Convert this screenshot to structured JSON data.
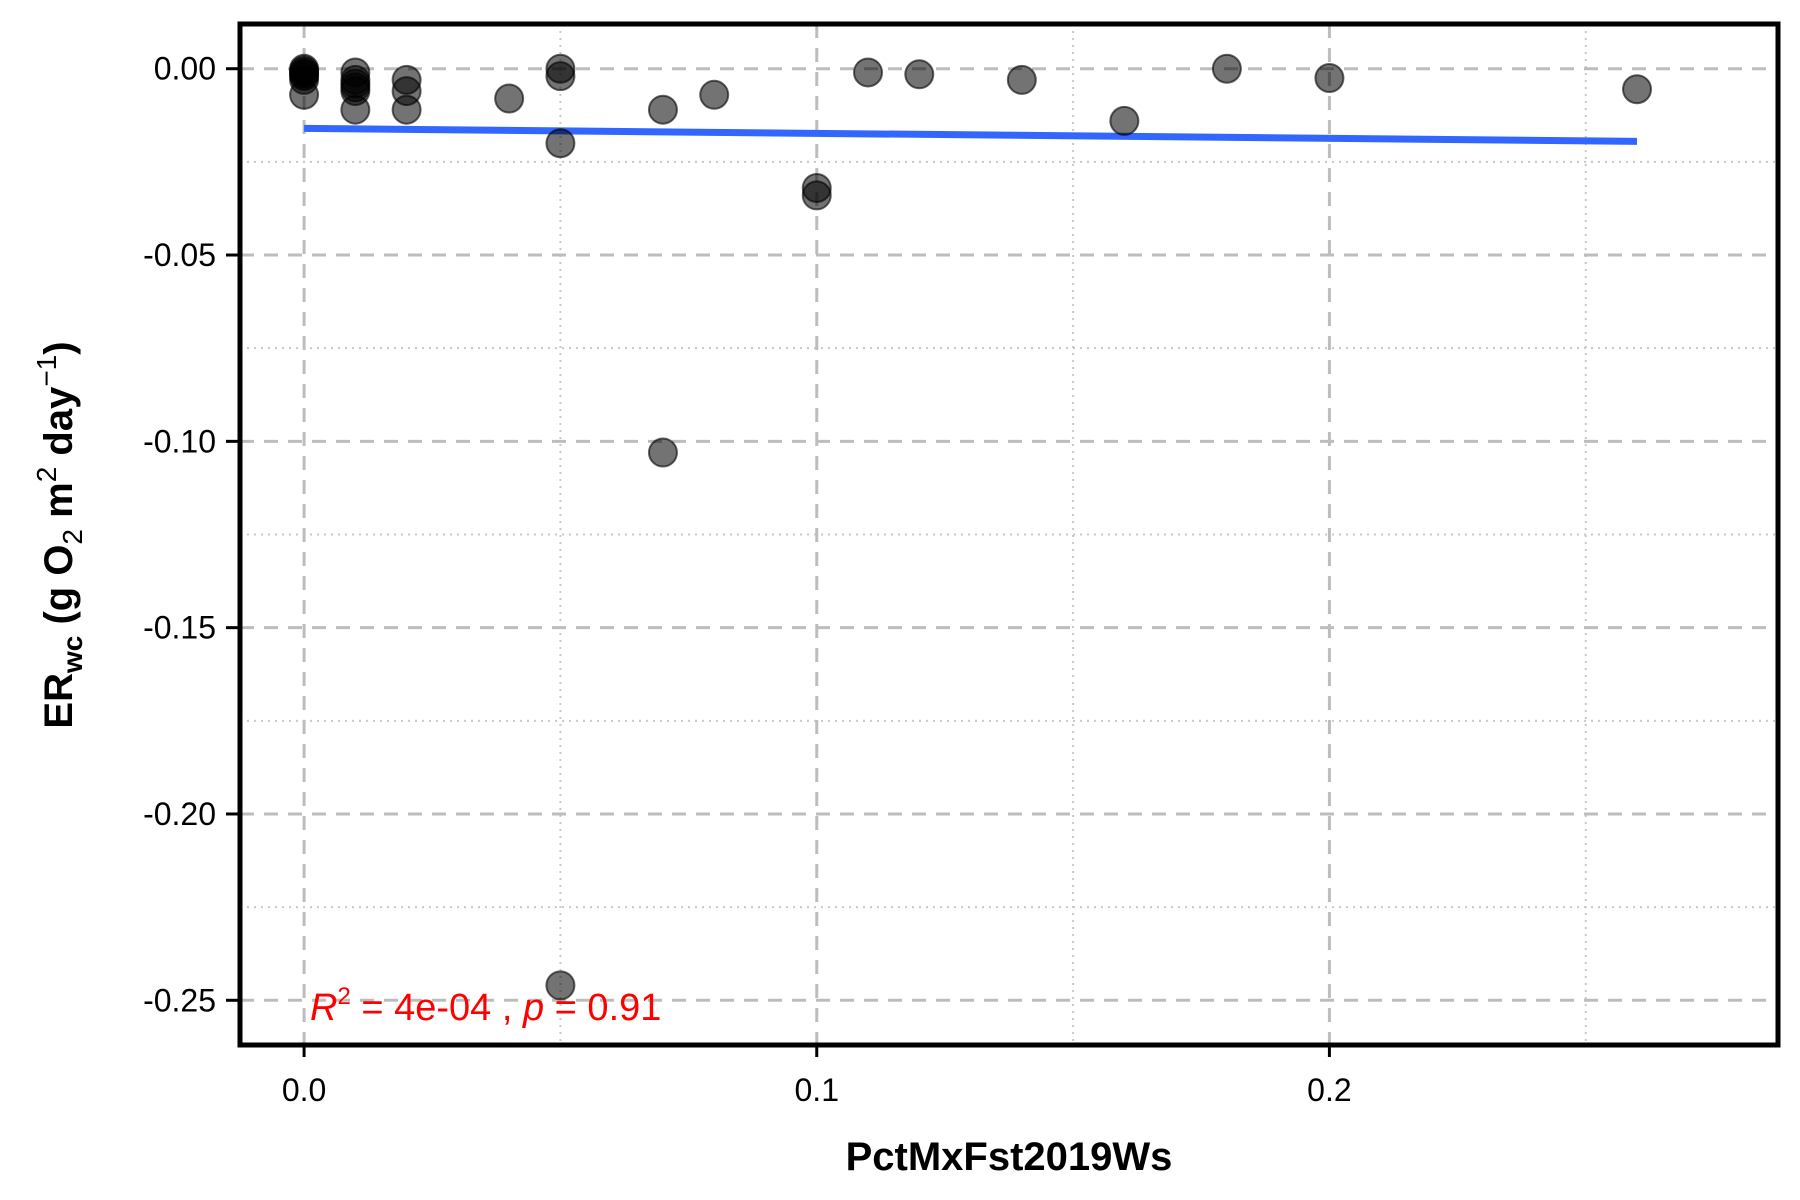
{
  "chart_data": {
    "type": "scatter",
    "title": "",
    "xlabel": "PctMxFst2019Ws",
    "ylabel": {
      "prefix": "ER",
      "sub": "wc",
      "rest1": " (g O",
      "sub2": "2",
      "rest2": " m",
      "sup1": "2",
      "rest3": " day",
      "sup2": "−1",
      "rest4": ")"
    },
    "xlim": [
      -0.0125,
      0.2875
    ],
    "ylim": [
      -0.262,
      0.012
    ],
    "x_ticks": [
      0.0,
      0.1,
      0.2
    ],
    "x_tick_labels": [
      "0.0",
      "0.1",
      "0.2"
    ],
    "y_ticks": [
      0.0,
      -0.05,
      -0.1,
      -0.15,
      -0.2,
      -0.25
    ],
    "y_tick_labels": [
      "0.00",
      "-0.05",
      "-0.10",
      "-0.15",
      "-0.20",
      "-0.25"
    ],
    "grid": true,
    "legend": "none",
    "points": [
      {
        "x": 0.0,
        "y": 0.0
      },
      {
        "x": 0.0,
        "y": -0.0005
      },
      {
        "x": 0.0,
        "y": -0.001
      },
      {
        "x": 0.0,
        "y": -0.0015
      },
      {
        "x": 0.0,
        "y": -0.002
      },
      {
        "x": 0.0,
        "y": -0.003
      },
      {
        "x": 0.0,
        "y": -0.007
      },
      {
        "x": 0.01,
        "y": -0.001
      },
      {
        "x": 0.01,
        "y": -0.003
      },
      {
        "x": 0.01,
        "y": -0.004
      },
      {
        "x": 0.01,
        "y": -0.005
      },
      {
        "x": 0.01,
        "y": -0.006
      },
      {
        "x": 0.01,
        "y": -0.011
      },
      {
        "x": 0.02,
        "y": -0.003
      },
      {
        "x": 0.02,
        "y": -0.006
      },
      {
        "x": 0.02,
        "y": -0.011
      },
      {
        "x": 0.04,
        "y": -0.008
      },
      {
        "x": 0.05,
        "y": 0.0
      },
      {
        "x": 0.05,
        "y": -0.002
      },
      {
        "x": 0.05,
        "y": -0.02
      },
      {
        "x": 0.05,
        "y": -0.246
      },
      {
        "x": 0.07,
        "y": -0.011
      },
      {
        "x": 0.07,
        "y": -0.103
      },
      {
        "x": 0.08,
        "y": -0.007
      },
      {
        "x": 0.1,
        "y": -0.032
      },
      {
        "x": 0.1,
        "y": -0.034
      },
      {
        "x": 0.11,
        "y": -0.001
      },
      {
        "x": 0.12,
        "y": -0.0015
      },
      {
        "x": 0.14,
        "y": -0.003
      },
      {
        "x": 0.16,
        "y": -0.014
      },
      {
        "x": 0.18,
        "y": 0.0
      },
      {
        "x": 0.2,
        "y": -0.0025
      },
      {
        "x": 0.26,
        "y": -0.0055
      }
    ],
    "point_color": "#000000",
    "point_opacity": 0.55,
    "fit_line": {
      "x": [
        0.0,
        0.26
      ],
      "y": [
        -0.016,
        -0.0195
      ],
      "color": "#3366FF"
    },
    "annotation": {
      "r_label": "R",
      "r_sup": "2",
      "r_value": " = 4e-04 , ",
      "p_label": "p",
      "p_value": " = 0.91",
      "color": "#FF0000"
    }
  }
}
